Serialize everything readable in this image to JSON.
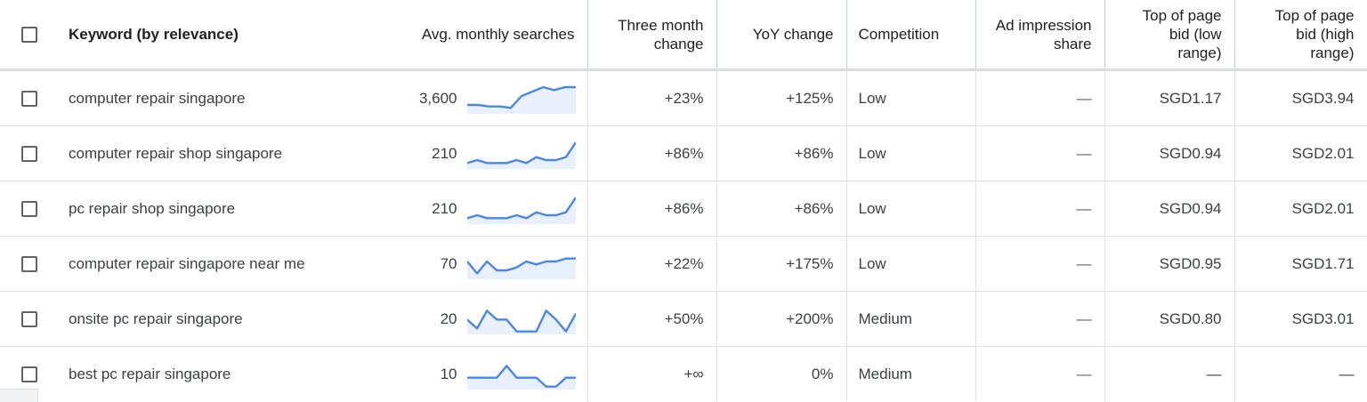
{
  "headers": {
    "keyword": "Keyword (by relevance)",
    "avg_searches": "Avg. monthly searches",
    "three_month_l1": "Three month",
    "three_month_l2": "change",
    "yoy": "YoY change",
    "competition": "Competition",
    "ad_share_l1": "Ad impression",
    "ad_share_l2": "share",
    "bid_low_l1": "Top of page",
    "bid_low_l2": "bid (low",
    "bid_low_l3": "range)",
    "bid_high_l1": "Top of page",
    "bid_high_l2": "bid (high",
    "bid_high_l3": "range)"
  },
  "colors": {
    "spark_line": "#4a86e8",
    "spark_fill": "#e8f0fe"
  },
  "rows": [
    {
      "keyword": "computer repair singapore",
      "searches": "3,600",
      "trend": [
        3,
        3,
        2.5,
        2.5,
        2,
        6,
        7.5,
        9,
        8,
        9,
        9
      ],
      "three_month": "+23%",
      "yoy": "+125%",
      "competition": "Low",
      "ad_share": "—",
      "bid_low": "SGD1.17",
      "bid_high": "SGD3.94"
    },
    {
      "keyword": "computer repair shop singapore",
      "searches": "210",
      "trend": [
        2,
        3,
        2,
        2,
        2,
        3,
        2,
        4,
        3,
        3,
        4,
        9
      ],
      "three_month": "+86%",
      "yoy": "+86%",
      "competition": "Low",
      "ad_share": "—",
      "bid_low": "SGD0.94",
      "bid_high": "SGD2.01"
    },
    {
      "keyword": "pc repair shop singapore",
      "searches": "210",
      "trend": [
        2,
        3,
        2,
        2,
        2,
        3,
        2,
        4,
        3,
        3,
        4,
        9
      ],
      "three_month": "+86%",
      "yoy": "+86%",
      "competition": "Low",
      "ad_share": "—",
      "bid_low": "SGD0.94",
      "bid_high": "SGD2.01"
    },
    {
      "keyword": "computer repair singapore near me",
      "searches": "70",
      "trend": [
        6,
        2,
        6,
        3,
        3,
        4,
        6,
        5,
        6,
        6,
        7,
        7
      ],
      "three_month": "+22%",
      "yoy": "+175%",
      "competition": "Low",
      "ad_share": "—",
      "bid_low": "SGD0.95",
      "bid_high": "SGD1.71"
    },
    {
      "keyword": "onsite pc repair singapore",
      "searches": "20",
      "trend": [
        5,
        2,
        8,
        5,
        5,
        1,
        1,
        1,
        8,
        5,
        1,
        7
      ],
      "three_month": "+50%",
      "yoy": "+200%",
      "competition": "Medium",
      "ad_share": "—",
      "bid_low": "SGD0.80",
      "bid_high": "SGD3.01"
    },
    {
      "keyword": "best pc repair singapore",
      "searches": "10",
      "trend": [
        4,
        4,
        4,
        4,
        8,
        4,
        4,
        4,
        1,
        1,
        4,
        4
      ],
      "three_month": "+∞",
      "yoy": "0%",
      "competition": "Medium",
      "ad_share": "—",
      "bid_low": "—",
      "bid_high": "—"
    }
  ]
}
